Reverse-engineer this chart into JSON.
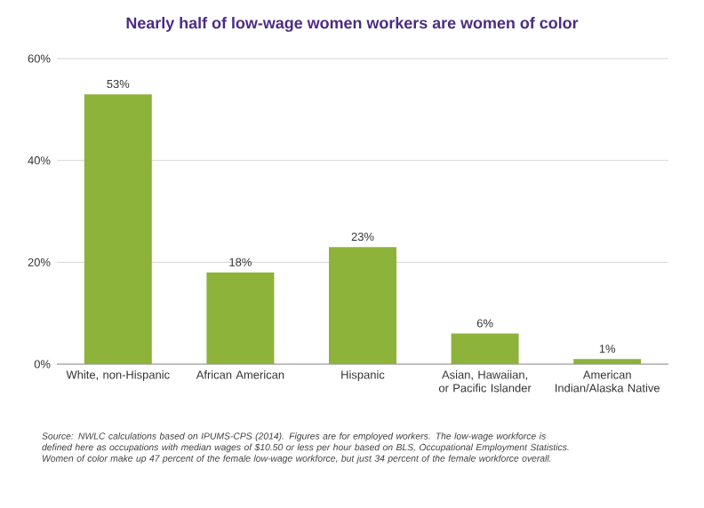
{
  "chart_data": {
    "type": "bar",
    "title": "Nearly half of low-wage women workers are women of color",
    "categories": [
      "White, non-Hispanic",
      "African American",
      "Hispanic",
      "Asian, Hawaiian, or Pacific Islander",
      "American Indian/Alaska Native"
    ],
    "values": [
      53,
      18,
      23,
      6,
      1
    ],
    "value_labels": [
      "53%",
      "18%",
      "23%",
      "6%",
      "1%"
    ],
    "color": "#8db33a",
    "ylim": [
      0,
      60
    ],
    "yticks": [
      {
        "value": 0,
        "label": "0%"
      },
      {
        "value": 20,
        "label": "20%"
      },
      {
        "value": 40,
        "label": "40%"
      },
      {
        "value": 60,
        "label": "60%"
      }
    ],
    "grid": "y",
    "annotations": [
      "Source: NWLC calculations based on IPUMS-CPS (2014). Figures are for employed workers. The low-wage workforce is  defined here as occupations with median wages of $10.50 or less per hour based on BLS, Occupational Employment Statistics. Women of color make up 47 percent of the female low-wage workforce, but just 34 percent of the female workforce overall."
    ]
  }
}
